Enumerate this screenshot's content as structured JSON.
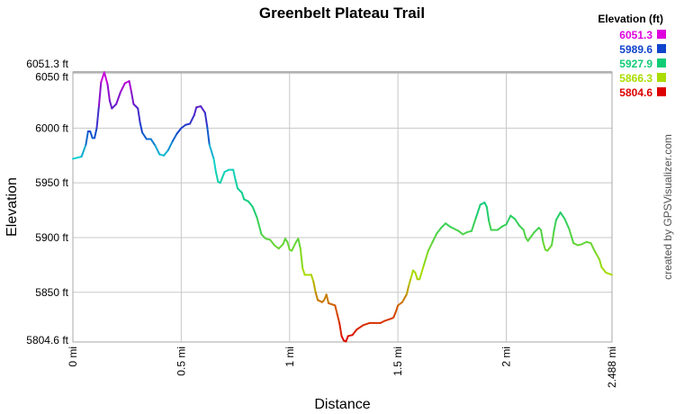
{
  "chart_data": {
    "type": "line",
    "title": "Greenbelt Plateau Trail",
    "xlabel": "Distance",
    "ylabel": "Elevation",
    "xlim": [
      0,
      2.488
    ],
    "ylim": [
      5804.6,
      6051.3
    ],
    "x_ticks": [
      {
        "value": 0,
        "label": "0 mi"
      },
      {
        "value": 0.5,
        "label": "0.5 mi"
      },
      {
        "value": 1,
        "label": "1 mi"
      },
      {
        "value": 1.5,
        "label": "1.5 mi"
      },
      {
        "value": 2,
        "label": "2 mi"
      },
      {
        "value": 2.488,
        "label": "2.488 mi"
      }
    ],
    "y_ticks": [
      {
        "value": 5804.6,
        "label": "5804.6 ft"
      },
      {
        "value": 5850,
        "label": "5850 ft"
      },
      {
        "value": 5900,
        "label": "5900 ft"
      },
      {
        "value": 5950,
        "label": "5950 ft"
      },
      {
        "value": 6000,
        "label": "6000 ft"
      },
      {
        "value": 6050,
        "label": "6050 ft"
      },
      {
        "value": 6051.3,
        "label": "6051.3 ft"
      }
    ],
    "grid": true,
    "legend": {
      "title": "Elevation (ft)",
      "placement": "top-right",
      "entries": [
        {
          "label": "6051.3",
          "color": "#dd00dd"
        },
        {
          "label": "5989.6",
          "color": "#1144cc"
        },
        {
          "label": "5927.9",
          "color": "#11cc77"
        },
        {
          "label": "5866.3",
          "color": "#aadd00"
        },
        {
          "label": "5804.6",
          "color": "#dd0000"
        }
      ]
    },
    "credit": "created by GPSVisualizer.com",
    "series": [
      {
        "points": [
          [
            0.0,
            5972
          ],
          [
            0.04,
            5974
          ],
          [
            0.06,
            5985
          ],
          [
            0.07,
            5997
          ],
          [
            0.08,
            5997
          ],
          [
            0.09,
            5991
          ],
          [
            0.1,
            5991
          ],
          [
            0.11,
            6000
          ],
          [
            0.12,
            6020
          ],
          [
            0.13,
            6042
          ],
          [
            0.145,
            6051
          ],
          [
            0.16,
            6040
          ],
          [
            0.17,
            6025
          ],
          [
            0.18,
            6018
          ],
          [
            0.2,
            6022
          ],
          [
            0.22,
            6033
          ],
          [
            0.24,
            6041
          ],
          [
            0.26,
            6043
          ],
          [
            0.27,
            6033
          ],
          [
            0.28,
            6022
          ],
          [
            0.3,
            6018
          ],
          [
            0.31,
            6005
          ],
          [
            0.32,
            5996
          ],
          [
            0.34,
            5990
          ],
          [
            0.36,
            5990
          ],
          [
            0.38,
            5984
          ],
          [
            0.4,
            5976
          ],
          [
            0.42,
            5975
          ],
          [
            0.44,
            5980
          ],
          [
            0.46,
            5988
          ],
          [
            0.48,
            5995
          ],
          [
            0.5,
            6000
          ],
          [
            0.52,
            6003
          ],
          [
            0.54,
            6004
          ],
          [
            0.56,
            6012
          ],
          [
            0.57,
            6019
          ],
          [
            0.59,
            6020
          ],
          [
            0.61,
            6014
          ],
          [
            0.62,
            6001
          ],
          [
            0.63,
            5985
          ],
          [
            0.65,
            5972
          ],
          [
            0.66,
            5960
          ],
          [
            0.67,
            5951
          ],
          [
            0.68,
            5950
          ],
          [
            0.69,
            5955
          ],
          [
            0.7,
            5960
          ],
          [
            0.72,
            5962
          ],
          [
            0.74,
            5962
          ],
          [
            0.75,
            5953
          ],
          [
            0.76,
            5945
          ],
          [
            0.78,
            5941
          ],
          [
            0.79,
            5935
          ],
          [
            0.81,
            5933
          ],
          [
            0.83,
            5928
          ],
          [
            0.85,
            5918
          ],
          [
            0.87,
            5903
          ],
          [
            0.89,
            5899
          ],
          [
            0.91,
            5898
          ],
          [
            0.93,
            5893
          ],
          [
            0.95,
            5890
          ],
          [
            0.97,
            5894
          ],
          [
            0.98,
            5899
          ],
          [
            0.99,
            5896
          ],
          [
            1.0,
            5889
          ],
          [
            1.01,
            5888
          ],
          [
            1.03,
            5896
          ],
          [
            1.04,
            5899
          ],
          [
            1.05,
            5890
          ],
          [
            1.06,
            5872
          ],
          [
            1.07,
            5866
          ],
          [
            1.1,
            5866
          ],
          [
            1.11,
            5860
          ],
          [
            1.12,
            5850
          ],
          [
            1.13,
            5843
          ],
          [
            1.15,
            5841
          ],
          [
            1.16,
            5843
          ],
          [
            1.17,
            5848
          ],
          [
            1.18,
            5840
          ],
          [
            1.21,
            5838
          ],
          [
            1.22,
            5830
          ],
          [
            1.23,
            5822
          ],
          [
            1.24,
            5810
          ],
          [
            1.25,
            5806
          ],
          [
            1.26,
            5805
          ],
          [
            1.27,
            5810
          ],
          [
            1.29,
            5811
          ],
          [
            1.31,
            5816
          ],
          [
            1.34,
            5820
          ],
          [
            1.37,
            5822
          ],
          [
            1.42,
            5822
          ],
          [
            1.44,
            5824
          ],
          [
            1.47,
            5826
          ],
          [
            1.48,
            5827
          ],
          [
            1.49,
            5832
          ],
          [
            1.5,
            5838
          ],
          [
            1.52,
            5841
          ],
          [
            1.54,
            5848
          ],
          [
            1.55,
            5856
          ],
          [
            1.56,
            5863
          ],
          [
            1.57,
            5870
          ],
          [
            1.58,
            5868
          ],
          [
            1.59,
            5862
          ],
          [
            1.6,
            5862
          ],
          [
            1.62,
            5875
          ],
          [
            1.64,
            5888
          ],
          [
            1.66,
            5896
          ],
          [
            1.68,
            5904
          ],
          [
            1.7,
            5909
          ],
          [
            1.72,
            5913
          ],
          [
            1.74,
            5910
          ],
          [
            1.76,
            5908
          ],
          [
            1.78,
            5906
          ],
          [
            1.8,
            5903
          ],
          [
            1.82,
            5905
          ],
          [
            1.84,
            5906
          ],
          [
            1.86,
            5918
          ],
          [
            1.88,
            5930
          ],
          [
            1.9,
            5932
          ],
          [
            1.91,
            5928
          ],
          [
            1.92,
            5915
          ],
          [
            1.93,
            5907
          ],
          [
            1.96,
            5907
          ],
          [
            1.98,
            5910
          ],
          [
            2.0,
            5912
          ],
          [
            2.02,
            5920
          ],
          [
            2.04,
            5917
          ],
          [
            2.06,
            5911
          ],
          [
            2.08,
            5907
          ],
          [
            2.09,
            5900
          ],
          [
            2.1,
            5897
          ],
          [
            2.13,
            5905
          ],
          [
            2.15,
            5909
          ],
          [
            2.16,
            5907
          ],
          [
            2.17,
            5896
          ],
          [
            2.18,
            5889
          ],
          [
            2.19,
            5888
          ],
          [
            2.21,
            5893
          ],
          [
            2.22,
            5906
          ],
          [
            2.23,
            5916
          ],
          [
            2.25,
            5923
          ],
          [
            2.27,
            5917
          ],
          [
            2.29,
            5908
          ],
          [
            2.31,
            5895
          ],
          [
            2.33,
            5893
          ],
          [
            2.35,
            5894
          ],
          [
            2.37,
            5896
          ],
          [
            2.39,
            5895
          ],
          [
            2.41,
            5887
          ],
          [
            2.43,
            5880
          ],
          [
            2.44,
            5873
          ],
          [
            2.46,
            5868
          ],
          [
            2.488,
            5866
          ]
        ]
      }
    ]
  }
}
